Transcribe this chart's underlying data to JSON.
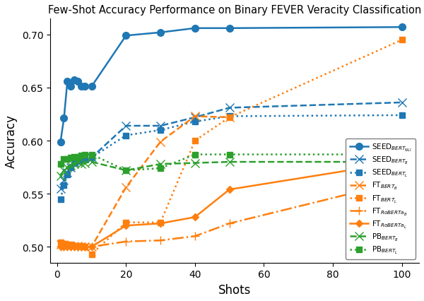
{
  "title": "Few-Shot Accuracy Performance on Binary FEVER Veracity Classification",
  "xlabel": "Shots",
  "ylabel": "Accuracy",
  "series": [
    {
      "label": "SEED$_{BERT_{NLI}}$",
      "x": [
        1,
        2,
        3,
        4,
        5,
        6,
        7,
        8,
        10,
        20,
        30,
        40,
        50,
        100
      ],
      "y": [
        0.599,
        0.621,
        0.656,
        0.651,
        0.657,
        0.656,
        0.651,
        0.651,
        0.651,
        0.699,
        0.702,
        0.706,
        0.706,
        0.707
      ],
      "color": "#1f77b4",
      "linestyle": "-",
      "marker": "o",
      "markersize": 7,
      "linewidth": 1.8
    },
    {
      "label": "SEED$_{BERT_B}$",
      "x": [
        1,
        2,
        3,
        4,
        5,
        6,
        7,
        8,
        10,
        20,
        30,
        40,
        50,
        100
      ],
      "y": [
        0.555,
        0.563,
        0.57,
        0.575,
        0.58,
        0.582,
        0.583,
        0.584,
        0.584,
        0.614,
        0.614,
        0.622,
        0.631,
        0.636
      ],
      "color": "#1f77b4",
      "linestyle": "--",
      "marker": "x",
      "markersize": 8,
      "linewidth": 1.8
    },
    {
      "label": "SEED$_{BERT_L}$",
      "x": [
        1,
        2,
        3,
        4,
        5,
        6,
        7,
        8,
        10,
        20,
        30,
        40,
        50,
        100
      ],
      "y": [
        0.545,
        0.558,
        0.568,
        0.575,
        0.579,
        0.581,
        0.582,
        0.583,
        0.584,
        0.605,
        0.61,
        0.618,
        0.623,
        0.624
      ],
      "color": "#1f77b4",
      "linestyle": ":",
      "marker": "s",
      "markersize": 6,
      "linewidth": 1.8
    },
    {
      "label": "FT$_{BERT_B}$",
      "x": [
        1,
        2,
        3,
        4,
        5,
        6,
        7,
        8,
        10,
        20,
        30,
        40,
        50
      ],
      "y": [
        0.502,
        0.502,
        0.501,
        0.501,
        0.501,
        0.501,
        0.5,
        0.5,
        0.5,
        0.556,
        0.599,
        0.623,
        0.622
      ],
      "color": "#ff7f0e",
      "linestyle": "--",
      "marker": "x",
      "markersize": 8,
      "linewidth": 1.8
    },
    {
      "label": "FT$_{BERT_L}$",
      "x": [
        1,
        2,
        3,
        4,
        5,
        6,
        7,
        8,
        10,
        20,
        30,
        40,
        50,
        100
      ],
      "y": [
        0.504,
        0.503,
        0.502,
        0.502,
        0.501,
        0.501,
        0.501,
        0.5,
        0.493,
        0.523,
        0.523,
        0.6,
        0.622,
        0.695
      ],
      "color": "#ff7f0e",
      "linestyle": ":",
      "marker": "s",
      "markersize": 6,
      "linewidth": 1.8
    },
    {
      "label": "FT$_{RoBERTa_B}$",
      "x": [
        1,
        2,
        3,
        4,
        5,
        6,
        7,
        8,
        10,
        20,
        30,
        40,
        50,
        100
      ],
      "y": [
        0.5,
        0.5,
        0.5,
        0.5,
        0.5,
        0.5,
        0.5,
        0.5,
        0.5,
        0.505,
        0.506,
        0.51,
        0.522,
        0.562
      ],
      "color": "#ff7f0e",
      "linestyle": "-.",
      "marker": "+",
      "markersize": 8,
      "linewidth": 1.8
    },
    {
      "label": "FT$_{RoBERTa_L}$",
      "x": [
        1,
        2,
        3,
        4,
        5,
        6,
        7,
        8,
        10,
        20,
        30,
        40,
        50,
        100
      ],
      "y": [
        0.5,
        0.5,
        0.5,
        0.5,
        0.5,
        0.5,
        0.5,
        0.5,
        0.5,
        0.52,
        0.522,
        0.528,
        0.554,
        0.58
      ],
      "color": "#ff7f0e",
      "linestyle": "-",
      "marker": "D",
      "markersize": 5,
      "linewidth": 1.8
    },
    {
      "label": "PB$_{BERT_B}$",
      "x": [
        1,
        2,
        3,
        4,
        5,
        6,
        7,
        8,
        10,
        20,
        30,
        40,
        50,
        100
      ],
      "y": [
        0.567,
        0.572,
        0.575,
        0.577,
        0.578,
        0.58,
        0.578,
        0.579,
        0.58,
        0.572,
        0.578,
        0.579,
        0.58,
        0.58
      ],
      "color": "#2ca02c",
      "linestyle": "--",
      "marker": "x",
      "markersize": 8,
      "linewidth": 1.8
    },
    {
      "label": "PB$_{BERT_L}$",
      "x": [
        1,
        2,
        3,
        4,
        5,
        6,
        7,
        8,
        10,
        20,
        30,
        40,
        50,
        100
      ],
      "y": [
        0.578,
        0.583,
        0.583,
        0.584,
        0.585,
        0.585,
        0.586,
        0.587,
        0.587,
        0.572,
        0.574,
        0.587,
        0.587,
        0.587
      ],
      "color": "#2ca02c",
      "linestyle": ":",
      "marker": "s",
      "markersize": 6,
      "linewidth": 1.8
    }
  ],
  "xlim": [
    -2,
    105
  ],
  "ylim": [
    0.485,
    0.715
  ],
  "xticks": [
    0,
    20,
    40,
    60,
    80,
    100
  ],
  "yticks": [
    0.5,
    0.55,
    0.6,
    0.65,
    0.7
  ],
  "legend_loc": "lower right",
  "legend_fontsize": 7.5,
  "title_fontsize": 10.5,
  "axis_label_fontsize": 12,
  "tick_fontsize": 10,
  "figsize": [
    6.0,
    4.27
  ],
  "dpi": 100
}
